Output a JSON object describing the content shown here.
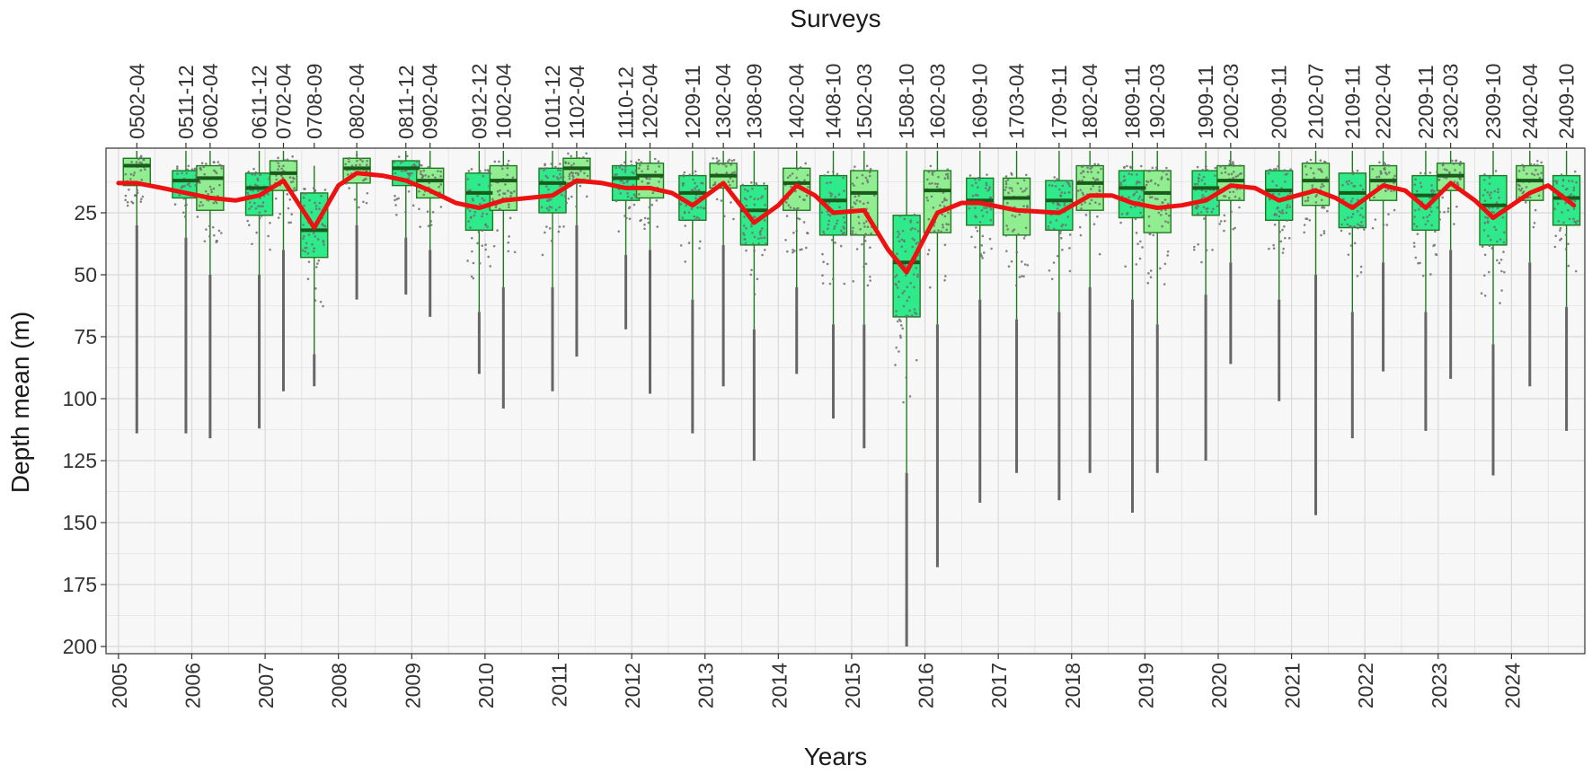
{
  "chart_data": {
    "type": "box",
    "title": "Surveys",
    "xlabel": "Years",
    "ylabel": "Depth mean (m)",
    "ylim": [
      0,
      200
    ],
    "y_reversed": true,
    "yticks": [
      25,
      50,
      75,
      100,
      125,
      150,
      175,
      200
    ],
    "x_year_range": [
      2005,
      2024
    ],
    "xticks": [
      "2005",
      "2006",
      "2007",
      "2008",
      "2009",
      "2010",
      "2011",
      "2012",
      "2013",
      "2014",
      "2015",
      "2016",
      "2017",
      "2018",
      "2019",
      "2020",
      "2021",
      "2022",
      "2023",
      "2024"
    ],
    "grid": true,
    "colors": {
      "box_fill_light": "#90EE90",
      "box_fill_dark": "#2EEA8A",
      "box_outline": "#1f7a1f",
      "median": "#1a5a1a",
      "points": "#707070",
      "smooth_line": "#ee1111",
      "panel_bg": "#f7f7f7",
      "grid": "#d9d9d9"
    },
    "surveys": [
      {
        "label": "0502-04",
        "t": 2005.25,
        "q1": 3,
        "median": 6,
        "q3": 14,
        "wlo": 0,
        "whi": 30,
        "max": 114
      },
      {
        "label": "0511-12",
        "t": 2005.92,
        "q1": 8,
        "median": 12,
        "q3": 19,
        "wlo": 0,
        "whi": 35,
        "max": 114
      },
      {
        "label": "0602-04",
        "t": 2006.25,
        "q1": 6,
        "median": 11,
        "q3": 24,
        "wlo": 0,
        "whi": 50,
        "max": 116
      },
      {
        "label": "0611-12",
        "t": 2006.92,
        "q1": 9,
        "median": 15,
        "q3": 26,
        "wlo": 0,
        "whi": 50,
        "max": 112
      },
      {
        "label": "0702-04",
        "t": 2007.25,
        "q1": 4,
        "median": 9,
        "q3": 16,
        "wlo": 0,
        "whi": 40,
        "max": 97
      },
      {
        "label": "0708-09",
        "t": 2007.67,
        "q1": 17,
        "median": 32,
        "q3": 43,
        "wlo": 6,
        "whi": 82,
        "max": 95
      },
      {
        "label": "0802-04",
        "t": 2008.25,
        "q1": 3,
        "median": 7,
        "q3": 13,
        "wlo": 0,
        "whi": 30,
        "max": 60
      },
      {
        "label": "0811-12",
        "t": 2008.92,
        "q1": 4,
        "median": 7,
        "q3": 14,
        "wlo": 0,
        "whi": 35,
        "max": 58
      },
      {
        "label": "0902-04",
        "t": 2009.25,
        "q1": 7,
        "median": 12,
        "q3": 19,
        "wlo": 0,
        "whi": 40,
        "max": 67
      },
      {
        "label": "0912-12",
        "t": 2009.92,
        "q1": 9,
        "median": 17,
        "q3": 32,
        "wlo": 0,
        "whi": 65,
        "max": 90
      },
      {
        "label": "1002-04",
        "t": 2010.25,
        "q1": 6,
        "median": 12,
        "q3": 24,
        "wlo": 0,
        "whi": 55,
        "max": 104
      },
      {
        "label": "1011-12",
        "t": 2010.92,
        "q1": 7,
        "median": 13,
        "q3": 25,
        "wlo": 0,
        "whi": 55,
        "max": 97
      },
      {
        "label": "1102-04",
        "t": 2011.25,
        "q1": 3,
        "median": 7,
        "q3": 13,
        "wlo": 0,
        "whi": 30,
        "max": 83
      },
      {
        "label": "1110-12",
        "t": 2011.92,
        "q1": 6,
        "median": 11,
        "q3": 20,
        "wlo": 0,
        "whi": 42,
        "max": 72
      },
      {
        "label": "1202-04",
        "t": 2012.25,
        "q1": 5,
        "median": 10,
        "q3": 19,
        "wlo": 0,
        "whi": 40,
        "max": 98
      },
      {
        "label": "1209-11",
        "t": 2012.83,
        "q1": 10,
        "median": 17,
        "q3": 28,
        "wlo": 0,
        "whi": 60,
        "max": 114
      },
      {
        "label": "1302-04",
        "t": 2013.25,
        "q1": 5,
        "median": 10,
        "q3": 15,
        "wlo": 0,
        "whi": 38,
        "max": 95
      },
      {
        "label": "1308-09",
        "t": 2013.67,
        "q1": 14,
        "median": 24,
        "q3": 38,
        "wlo": 0,
        "whi": 72,
        "max": 125
      },
      {
        "label": "1402-04",
        "t": 2014.25,
        "q1": 7,
        "median": 13,
        "q3": 24,
        "wlo": 0,
        "whi": 55,
        "max": 90
      },
      {
        "label": "1408-10",
        "t": 2014.75,
        "q1": 10,
        "median": 20,
        "q3": 34,
        "wlo": 0,
        "whi": 70,
        "max": 108
      },
      {
        "label": "1502-03",
        "t": 2015.17,
        "q1": 8,
        "median": 17,
        "q3": 34,
        "wlo": 0,
        "whi": 70,
        "max": 120
      },
      {
        "label": "1508-10",
        "t": 2015.75,
        "q1": 26,
        "median": 45,
        "q3": 67,
        "wlo": 0,
        "whi": 130,
        "max": 200
      },
      {
        "label": "1602-03",
        "t": 2016.17,
        "q1": 8,
        "median": 16,
        "q3": 33,
        "wlo": 0,
        "whi": 70,
        "max": 168
      },
      {
        "label": "1609-10",
        "t": 2016.75,
        "q1": 11,
        "median": 20,
        "q3": 30,
        "wlo": 0,
        "whi": 60,
        "max": 142
      },
      {
        "label": "1703-04",
        "t": 2017.25,
        "q1": 11,
        "median": 19,
        "q3": 34,
        "wlo": 0,
        "whi": 68,
        "max": 130
      },
      {
        "label": "1709-11",
        "t": 2017.83,
        "q1": 12,
        "median": 20,
        "q3": 32,
        "wlo": 0,
        "whi": 65,
        "max": 141
      },
      {
        "label": "1802-04",
        "t": 2018.25,
        "q1": 6,
        "median": 13,
        "q3": 24,
        "wlo": 0,
        "whi": 55,
        "max": 130
      },
      {
        "label": "1809-11",
        "t": 2018.83,
        "q1": 8,
        "median": 15,
        "q3": 27,
        "wlo": 0,
        "whi": 60,
        "max": 146
      },
      {
        "label": "1902-03",
        "t": 2019.17,
        "q1": 8,
        "median": 17,
        "q3": 33,
        "wlo": 0,
        "whi": 70,
        "max": 130
      },
      {
        "label": "1909-11",
        "t": 2019.83,
        "q1": 8,
        "median": 15,
        "q3": 26,
        "wlo": 0,
        "whi": 58,
        "max": 125
      },
      {
        "label": "2002-03",
        "t": 2020.17,
        "q1": 6,
        "median": 12,
        "q3": 20,
        "wlo": 0,
        "whi": 45,
        "max": 86
      },
      {
        "label": "2009-11",
        "t": 2020.83,
        "q1": 8,
        "median": 16,
        "q3": 28,
        "wlo": 0,
        "whi": 60,
        "max": 101
      },
      {
        "label": "2102-07",
        "t": 2021.33,
        "q1": 5,
        "median": 12,
        "q3": 22,
        "wlo": 0,
        "whi": 50,
        "max": 147
      },
      {
        "label": "2109-11",
        "t": 2021.83,
        "q1": 9,
        "median": 17,
        "q3": 31,
        "wlo": 0,
        "whi": 65,
        "max": 116
      },
      {
        "label": "2202-04",
        "t": 2022.25,
        "q1": 6,
        "median": 12,
        "q3": 20,
        "wlo": 0,
        "whi": 45,
        "max": 89
      },
      {
        "label": "2209-11",
        "t": 2022.83,
        "q1": 10,
        "median": 18,
        "q3": 32,
        "wlo": 0,
        "whi": 65,
        "max": 113
      },
      {
        "label": "2302-03",
        "t": 2023.17,
        "q1": 5,
        "median": 10,
        "q3": 16,
        "wlo": 0,
        "whi": 40,
        "max": 92
      },
      {
        "label": "2309-10",
        "t": 2023.75,
        "q1": 10,
        "median": 22,
        "q3": 38,
        "wlo": 0,
        "whi": 78,
        "max": 131
      },
      {
        "label": "2402-04",
        "t": 2024.25,
        "q1": 6,
        "median": 12,
        "q3": 20,
        "wlo": 0,
        "whi": 45,
        "max": 95
      },
      {
        "label": "2409-10",
        "t": 2024.75,
        "q1": 10,
        "median": 19,
        "q3": 30,
        "wlo": 0,
        "whi": 63,
        "max": 113
      }
    ],
    "smooth_series": {
      "t": [
        2005.0,
        2005.25,
        2005.6,
        2005.92,
        2006.25,
        2006.6,
        2006.92,
        2007.25,
        2007.67,
        2008.0,
        2008.25,
        2008.6,
        2008.92,
        2009.25,
        2009.6,
        2009.92,
        2010.25,
        2010.6,
        2010.92,
        2011.25,
        2011.6,
        2011.92,
        2012.25,
        2012.55,
        2012.83,
        2013.25,
        2013.67,
        2014.0,
        2014.25,
        2014.5,
        2014.75,
        2015.17,
        2015.5,
        2015.75,
        2016.17,
        2016.5,
        2016.75,
        2017.25,
        2017.83,
        2018.25,
        2018.55,
        2018.83,
        2019.17,
        2019.5,
        2019.83,
        2020.17,
        2020.5,
        2020.83,
        2021.33,
        2021.6,
        2021.83,
        2022.25,
        2022.55,
        2022.83,
        2023.17,
        2023.5,
        2023.75,
        2024.25,
        2024.5,
        2024.85
      ],
      "value": [
        13,
        13,
        15,
        17,
        19,
        20,
        18,
        12,
        31,
        14,
        9,
        10,
        12,
        16,
        21,
        23,
        20,
        19,
        18,
        12,
        13,
        15,
        15,
        17,
        22,
        13,
        29,
        22,
        14,
        18,
        25,
        24,
        40,
        49,
        25,
        21,
        21,
        24,
        25,
        18,
        18,
        21,
        23,
        22,
        20,
        14,
        15,
        20,
        16,
        19,
        23,
        14,
        16,
        23,
        13,
        20,
        27,
        17,
        14,
        22
      ]
    }
  }
}
